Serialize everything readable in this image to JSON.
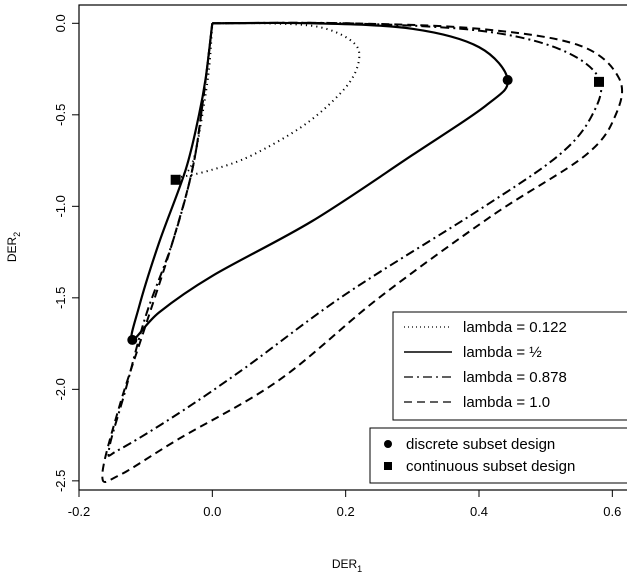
{
  "chart_data": {
    "type": "line",
    "title": "",
    "xlabel": "DER",
    "xlabel_sub": "1",
    "ylabel": "DER",
    "ylabel_sub": "2",
    "xlim": [
      -0.2,
      0.64
    ],
    "ylim": [
      -2.55,
      0.1
    ],
    "xticks": [
      "-0.2",
      "0.0",
      "0.2",
      "0.4",
      "0.6"
    ],
    "yticks": [
      "0.0",
      "-0.5",
      "-1.0",
      "-1.5",
      "-2.0",
      "-2.5"
    ],
    "grid": false,
    "series": [
      {
        "name": "lambda = 0.122",
        "style": "dotted",
        "points": [
          [
            0.0,
            0.0
          ],
          [
            0.08,
            0.0
          ],
          [
            0.16,
            -0.02
          ],
          [
            0.21,
            -0.1
          ],
          [
            0.22,
            -0.2
          ],
          [
            0.2,
            -0.35
          ],
          [
            0.14,
            -0.55
          ],
          [
            0.06,
            -0.72
          ],
          [
            0.0,
            -0.8
          ],
          [
            -0.05,
            -0.84
          ],
          [
            -0.035,
            -0.8
          ],
          [
            -0.025,
            -0.7
          ],
          [
            -0.015,
            -0.5
          ],
          [
            -0.005,
            -0.25
          ],
          [
            0.0,
            0.0
          ]
        ]
      },
      {
        "name": "lambda = ½",
        "style": "solid",
        "points": [
          [
            0.0,
            0.0
          ],
          [
            0.15,
            0.0
          ],
          [
            0.3,
            -0.03
          ],
          [
            0.4,
            -0.13
          ],
          [
            0.443,
            -0.31
          ],
          [
            0.41,
            -0.45
          ],
          [
            0.3,
            -0.72
          ],
          [
            0.15,
            -1.08
          ],
          [
            0.0,
            -1.38
          ],
          [
            -0.08,
            -1.58
          ],
          [
            -0.12,
            -1.73
          ],
          [
            -0.11,
            -1.55
          ],
          [
            -0.08,
            -1.2
          ],
          [
            -0.04,
            -0.8
          ],
          [
            -0.02,
            -0.5
          ],
          [
            -0.01,
            -0.3
          ],
          [
            0.0,
            0.0
          ]
        ]
      },
      {
        "name": "lambda = 0.878",
        "style": "dashdot",
        "points": [
          [
            0.0,
            0.0
          ],
          [
            0.2,
            0.0
          ],
          [
            0.4,
            -0.04
          ],
          [
            0.52,
            -0.14
          ],
          [
            0.58,
            -0.3
          ],
          [
            0.57,
            -0.5
          ],
          [
            0.52,
            -0.72
          ],
          [
            0.4,
            -1.02
          ],
          [
            0.2,
            -1.48
          ],
          [
            0.05,
            -1.88
          ],
          [
            -0.05,
            -2.13
          ],
          [
            -0.14,
            -2.33
          ],
          [
            -0.155,
            -2.33
          ],
          [
            -0.13,
            -2.0
          ],
          [
            -0.1,
            -1.6
          ],
          [
            -0.06,
            -1.2
          ],
          [
            -0.03,
            -0.8
          ],
          [
            -0.015,
            -0.45
          ],
          [
            0.0,
            0.0
          ]
        ]
      },
      {
        "name": "lambda = 1.0",
        "style": "dashed",
        "points": [
          [
            0.0,
            0.0
          ],
          [
            0.2,
            0.0
          ],
          [
            0.4,
            -0.03
          ],
          [
            0.55,
            -0.12
          ],
          [
            0.61,
            -0.3
          ],
          [
            0.605,
            -0.5
          ],
          [
            0.56,
            -0.72
          ],
          [
            0.42,
            -1.05
          ],
          [
            0.25,
            -1.5
          ],
          [
            0.1,
            -1.95
          ],
          [
            -0.05,
            -2.27
          ],
          [
            -0.14,
            -2.47
          ],
          [
            -0.165,
            -2.47
          ],
          [
            -0.14,
            -2.1
          ],
          [
            -0.1,
            -1.65
          ],
          [
            -0.06,
            -1.2
          ],
          [
            -0.03,
            -0.8
          ],
          [
            -0.015,
            -0.45
          ],
          [
            0.0,
            0.0
          ]
        ]
      }
    ],
    "markers": [
      {
        "name": "discrete subset design",
        "shape": "circle",
        "points": [
          [
            0.443,
            -0.31
          ],
          [
            -0.12,
            -1.73
          ]
        ]
      },
      {
        "name": "continuous subset design",
        "shape": "square",
        "points": [
          [
            0.58,
            -0.32
          ],
          [
            -0.055,
            -0.855
          ]
        ]
      }
    ],
    "legend_lines": {
      "placement": "right-middle",
      "entries": [
        "lambda = 0.122",
        "lambda = ½",
        "lambda = 0.878",
        "lambda = 1.0"
      ]
    },
    "legend_markers": {
      "placement": "bottom-right",
      "entries": [
        "discrete subset design",
        "continuous subset design"
      ]
    }
  }
}
